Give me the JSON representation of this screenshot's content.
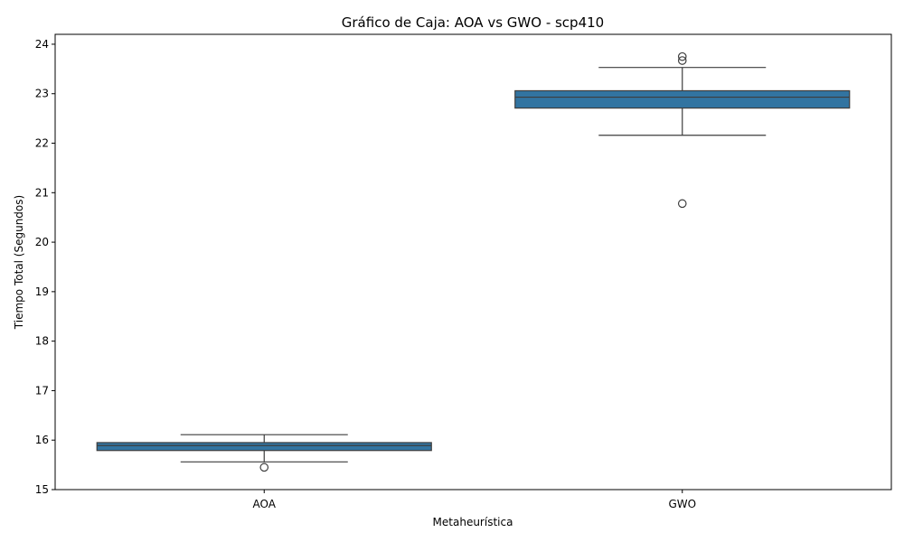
{
  "chart_data": {
    "type": "box",
    "title": "Gráfico de Caja: AOA vs GWO - scp410",
    "xlabel": "Metaheurística",
    "ylabel": "Tiempo Total (Segundos)",
    "ylim": [
      15,
      24.2
    ],
    "yticks": [
      15,
      16,
      17,
      18,
      19,
      20,
      21,
      22,
      23,
      24
    ],
    "categories": [
      "AOA",
      "GWO"
    ],
    "box_color": "#3274a1",
    "line_color": "#3d3d3d",
    "boxes": [
      {
        "name": "AOA",
        "whisker_low": 15.56,
        "q1": 15.79,
        "median": 15.89,
        "q3": 15.95,
        "whisker_high": 16.11,
        "outliers": [
          15.45
        ]
      },
      {
        "name": "GWO",
        "whisker_low": 22.16,
        "q1": 22.71,
        "median": 22.93,
        "q3": 23.06,
        "whisker_high": 23.53,
        "outliers": [
          20.78,
          23.67,
          23.75
        ]
      }
    ]
  }
}
